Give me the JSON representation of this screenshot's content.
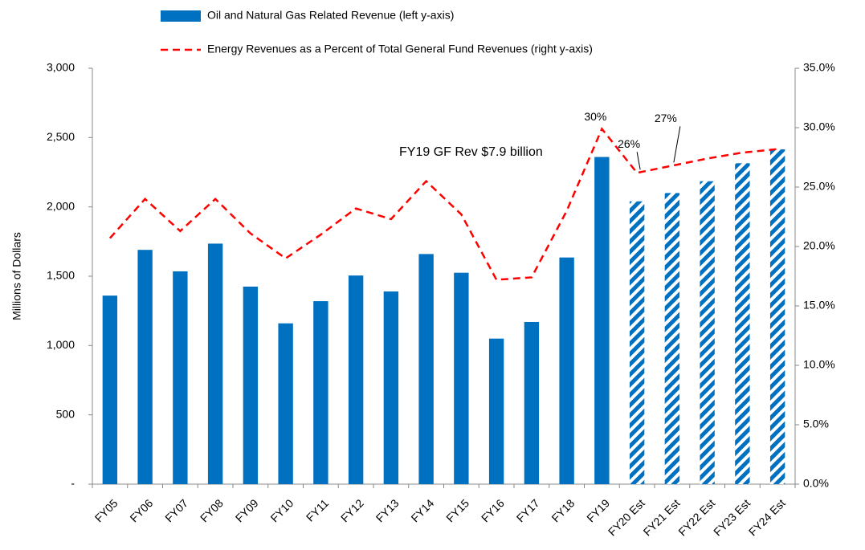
{
  "chart_data": {
    "type": "bar",
    "categories": [
      "FY05",
      "FY06",
      "FY07",
      "FY08",
      "FY09",
      "FY10",
      "FY11",
      "FY12",
      "FY13",
      "FY14",
      "FY15",
      "FY16",
      "FY17",
      "FY18",
      "FY19",
      "FY20 Est",
      "FY21 Est",
      "FY22 Est",
      "FY23 Est",
      "FY24 Est"
    ],
    "series": [
      {
        "name": "Oil and Natural Gas Related Revenue (left y-axis)",
        "type": "bar",
        "color": "#0070c0",
        "values": [
          1360,
          1690,
          1535,
          1735,
          1425,
          1160,
          1320,
          1505,
          1390,
          1660,
          1525,
          1050,
          1170,
          1635,
          2360,
          2040,
          2100,
          2185,
          2315,
          2415
        ],
        "hatch": [
          false,
          false,
          false,
          false,
          false,
          false,
          false,
          false,
          false,
          false,
          false,
          false,
          false,
          false,
          false,
          true,
          true,
          true,
          true,
          true
        ]
      },
      {
        "name": "Energy Revenues as a Percent of Total General Fund Revenues (right y-axis)",
        "type": "line",
        "axis": "y2",
        "color": "#ff0000",
        "dashed": true,
        "values": [
          20.7,
          24.0,
          21.3,
          24.0,
          21.1,
          19.0,
          21.0,
          23.2,
          22.3,
          25.5,
          22.7,
          17.2,
          17.4,
          23.0,
          29.9,
          26.2,
          26.8,
          27.4,
          27.9,
          28.2
        ],
        "value_labels": [
          null,
          null,
          null,
          null,
          null,
          null,
          null,
          null,
          null,
          null,
          null,
          null,
          null,
          null,
          "30%",
          "26%",
          "27%",
          null,
          null,
          null
        ]
      }
    ],
    "y_label": "Millions of Dollars",
    "annotation": "FY19 GF Rev $7.9 billion",
    "ylim": [
      0,
      3000
    ],
    "yticks": [
      {
        "value": 0,
        "label": "-"
      },
      500,
      {
        "value": 1000,
        "label": "1,000"
      },
      {
        "value": 1500,
        "label": "1,500"
      },
      {
        "value": 2000,
        "label": "2,000"
      },
      {
        "value": 2500,
        "label": "2,500"
      },
      {
        "value": 3000,
        "label": "3,000"
      }
    ],
    "y2lim": [
      0,
      35
    ],
    "y2ticks": [
      {
        "value": 0,
        "label": "0.0%"
      },
      {
        "value": 5,
        "label": "5.0%"
      },
      {
        "value": 10,
        "label": "10.0%"
      },
      {
        "value": 15,
        "label": "15.0%"
      },
      {
        "value": 20,
        "label": "20.0%"
      },
      {
        "value": 25,
        "label": "25.0%"
      },
      {
        "value": 30,
        "label": "30.0%"
      },
      {
        "value": 35,
        "label": "35.0%"
      }
    ],
    "grid": false
  }
}
